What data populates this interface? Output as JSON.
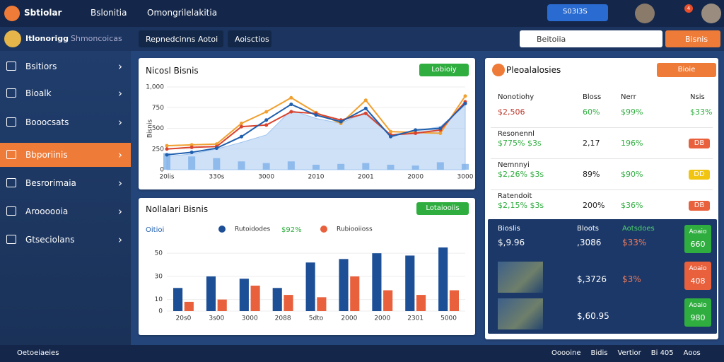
{
  "topbar": {
    "brand": "Sbtiolar",
    "nav": [
      "Bslonitia",
      "Omongrilelakitia"
    ],
    "badge": "S03I3S",
    "notif": "4"
  },
  "sidebar": {
    "user": "Itlonorigg",
    "role": "Shmoncoicas",
    "items": [
      "Bsitiors",
      "Bioalk",
      "Booocsats",
      "Bbporiinis",
      "Besrorimaia",
      "Aroooooia",
      "Gtseciolans"
    ]
  },
  "tabs": [
    "Repnedcinns",
    "Aotoi",
    "Aoisctios"
  ],
  "search": "Beitoiia",
  "action": "Bisnis",
  "line_chart": {
    "type": "line",
    "title": "Nicosl Bisnis",
    "button": "Lobioiy",
    "ylabel": "Bisnis",
    "categories": [
      "20lis",
      null,
      "330s",
      null,
      "3000",
      null,
      "2010",
      null,
      "2001",
      null,
      "2000",
      null,
      "3000"
    ],
    "series": [
      {
        "color": "#9fc4ef",
        "style": "area",
        "values": [
          160,
          190,
          250,
          330,
          420,
          720,
          620,
          560,
          700,
          420,
          470,
          520,
          780
        ]
      },
      {
        "color": "#7db0e8",
        "style": "bar",
        "values": [
          200,
          160,
          140,
          100,
          80,
          100,
          60,
          70,
          80,
          60,
          50,
          90,
          70
        ]
      },
      {
        "color": "#f0a030",
        "style": "line",
        "values": [
          290,
          300,
          310,
          560,
          700,
          870,
          690,
          560,
          840,
          460,
          450,
          440,
          890
        ]
      },
      {
        "color": "#d9432e",
        "style": "line",
        "values": [
          250,
          270,
          280,
          520,
          540,
          700,
          680,
          600,
          680,
          420,
          440,
          480,
          820
        ]
      },
      {
        "color": "#1f5fae",
        "style": "line",
        "values": [
          180,
          210,
          260,
          400,
          600,
          790,
          660,
          580,
          740,
          400,
          480,
          500,
          800
        ]
      }
    ],
    "ylim": [
      0,
      1000
    ],
    "yticks": [
      0,
      250,
      500,
      750,
      {
        "value": 1000,
        "label": "1,000"
      }
    ]
  },
  "bar_chart": {
    "type": "bar",
    "title": "Nollalari Bisnis",
    "button": "Lotaiooiis",
    "legend_title": "Oitioi",
    "legend_value": "$92%",
    "categories": [
      "20s0",
      "3s00",
      "3000",
      "2088",
      "5dto",
      "2000",
      "2000",
      "2301",
      "5000"
    ],
    "series": [
      {
        "name": "Rutoidodes",
        "color": "#1d4f96",
        "values": [
          20,
          30,
          28,
          20,
          42,
          45,
          50,
          48,
          55
        ]
      },
      {
        "name": "Rubiooiioss",
        "color": "#e8603c",
        "values": [
          8,
          10,
          22,
          14,
          12,
          30,
          18,
          14,
          18
        ]
      }
    ],
    "ylim": [
      0,
      55
    ],
    "yticks": [
      0,
      10,
      30,
      50
    ]
  },
  "table": {
    "title": "Pleoalalosies",
    "button": "Bioie",
    "header": [
      "Nonotiohy",
      "Bloss",
      "Nerr",
      "Nsis"
    ],
    "rows": [
      {
        "cells": [
          "$2,506",
          "60%",
          "$99%",
          "$33%"
        ]
      },
      {
        "label": "Resonennl",
        "cells": [
          "$775% $3s",
          "2,17",
          "196%",
          "DB"
        ]
      },
      {
        "label": "Nemnnyi",
        "cells": [
          "$2,26% $3s",
          "89%",
          "$90%",
          "DD"
        ]
      },
      {
        "label": "Ratendoit",
        "cells": [
          "$2,15% $3s",
          "200%",
          "$36%",
          "DB"
        ]
      }
    ]
  },
  "list": [
    {
      "title": "Bioslis",
      "value": "$,9.96",
      "col2": "Bloots",
      "value2": ",3086",
      "col3": "Aotsdoes",
      "value3": "$33%",
      "button": "Aoaio",
      "button_value": "660"
    },
    {
      "value2": "$,3726",
      "value3": "$3%",
      "button": "Aoaio",
      "button_value": "408"
    },
    {
      "value2": "$,60.95",
      "button": "Aoaio",
      "button_value": "980"
    }
  ],
  "footer": {
    "left": "Oetoeiaeies",
    "right": [
      "Ooooine",
      "Bidis",
      "Vertior",
      "Bi 405",
      "Aoos"
    ]
  }
}
